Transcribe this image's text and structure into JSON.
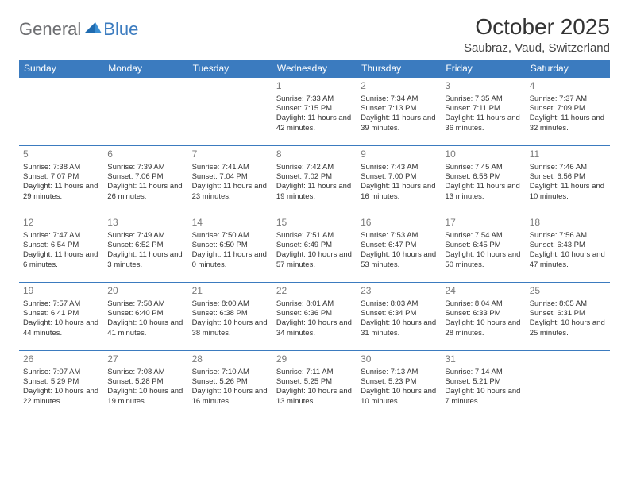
{
  "logo": {
    "general": "General",
    "blue": "Blue"
  },
  "title": "October 2025",
  "location": "Saubraz, Vaud, Switzerland",
  "colors": {
    "header_bg": "#3b7bbf",
    "header_text": "#ffffff",
    "border": "#3b7bbf",
    "daynum": "#7a7a7a",
    "body_text": "#333333",
    "logo_gray": "#6d6e71",
    "logo_blue": "#3b7bbf"
  },
  "day_headers": [
    "Sunday",
    "Monday",
    "Tuesday",
    "Wednesday",
    "Thursday",
    "Friday",
    "Saturday"
  ],
  "weeks": [
    [
      null,
      null,
      null,
      {
        "n": "1",
        "sr": "7:33 AM",
        "ss": "7:15 PM",
        "dl": "11 hours and 42 minutes."
      },
      {
        "n": "2",
        "sr": "7:34 AM",
        "ss": "7:13 PM",
        "dl": "11 hours and 39 minutes."
      },
      {
        "n": "3",
        "sr": "7:35 AM",
        "ss": "7:11 PM",
        "dl": "11 hours and 36 minutes."
      },
      {
        "n": "4",
        "sr": "7:37 AM",
        "ss": "7:09 PM",
        "dl": "11 hours and 32 minutes."
      }
    ],
    [
      {
        "n": "5",
        "sr": "7:38 AM",
        "ss": "7:07 PM",
        "dl": "11 hours and 29 minutes."
      },
      {
        "n": "6",
        "sr": "7:39 AM",
        "ss": "7:06 PM",
        "dl": "11 hours and 26 minutes."
      },
      {
        "n": "7",
        "sr": "7:41 AM",
        "ss": "7:04 PM",
        "dl": "11 hours and 23 minutes."
      },
      {
        "n": "8",
        "sr": "7:42 AM",
        "ss": "7:02 PM",
        "dl": "11 hours and 19 minutes."
      },
      {
        "n": "9",
        "sr": "7:43 AM",
        "ss": "7:00 PM",
        "dl": "11 hours and 16 minutes."
      },
      {
        "n": "10",
        "sr": "7:45 AM",
        "ss": "6:58 PM",
        "dl": "11 hours and 13 minutes."
      },
      {
        "n": "11",
        "sr": "7:46 AM",
        "ss": "6:56 PM",
        "dl": "11 hours and 10 minutes."
      }
    ],
    [
      {
        "n": "12",
        "sr": "7:47 AM",
        "ss": "6:54 PM",
        "dl": "11 hours and 6 minutes."
      },
      {
        "n": "13",
        "sr": "7:49 AM",
        "ss": "6:52 PM",
        "dl": "11 hours and 3 minutes."
      },
      {
        "n": "14",
        "sr": "7:50 AM",
        "ss": "6:50 PM",
        "dl": "11 hours and 0 minutes."
      },
      {
        "n": "15",
        "sr": "7:51 AM",
        "ss": "6:49 PM",
        "dl": "10 hours and 57 minutes."
      },
      {
        "n": "16",
        "sr": "7:53 AM",
        "ss": "6:47 PM",
        "dl": "10 hours and 53 minutes."
      },
      {
        "n": "17",
        "sr": "7:54 AM",
        "ss": "6:45 PM",
        "dl": "10 hours and 50 minutes."
      },
      {
        "n": "18",
        "sr": "7:56 AM",
        "ss": "6:43 PM",
        "dl": "10 hours and 47 minutes."
      }
    ],
    [
      {
        "n": "19",
        "sr": "7:57 AM",
        "ss": "6:41 PM",
        "dl": "10 hours and 44 minutes."
      },
      {
        "n": "20",
        "sr": "7:58 AM",
        "ss": "6:40 PM",
        "dl": "10 hours and 41 minutes."
      },
      {
        "n": "21",
        "sr": "8:00 AM",
        "ss": "6:38 PM",
        "dl": "10 hours and 38 minutes."
      },
      {
        "n": "22",
        "sr": "8:01 AM",
        "ss": "6:36 PM",
        "dl": "10 hours and 34 minutes."
      },
      {
        "n": "23",
        "sr": "8:03 AM",
        "ss": "6:34 PM",
        "dl": "10 hours and 31 minutes."
      },
      {
        "n": "24",
        "sr": "8:04 AM",
        "ss": "6:33 PM",
        "dl": "10 hours and 28 minutes."
      },
      {
        "n": "25",
        "sr": "8:05 AM",
        "ss": "6:31 PM",
        "dl": "10 hours and 25 minutes."
      }
    ],
    [
      {
        "n": "26",
        "sr": "7:07 AM",
        "ss": "5:29 PM",
        "dl": "10 hours and 22 minutes."
      },
      {
        "n": "27",
        "sr": "7:08 AM",
        "ss": "5:28 PM",
        "dl": "10 hours and 19 minutes."
      },
      {
        "n": "28",
        "sr": "7:10 AM",
        "ss": "5:26 PM",
        "dl": "10 hours and 16 minutes."
      },
      {
        "n": "29",
        "sr": "7:11 AM",
        "ss": "5:25 PM",
        "dl": "10 hours and 13 minutes."
      },
      {
        "n": "30",
        "sr": "7:13 AM",
        "ss": "5:23 PM",
        "dl": "10 hours and 10 minutes."
      },
      {
        "n": "31",
        "sr": "7:14 AM",
        "ss": "5:21 PM",
        "dl": "10 hours and 7 minutes."
      },
      null
    ]
  ],
  "labels": {
    "sunrise": "Sunrise: ",
    "sunset": "Sunset: ",
    "daylight": "Daylight: "
  }
}
